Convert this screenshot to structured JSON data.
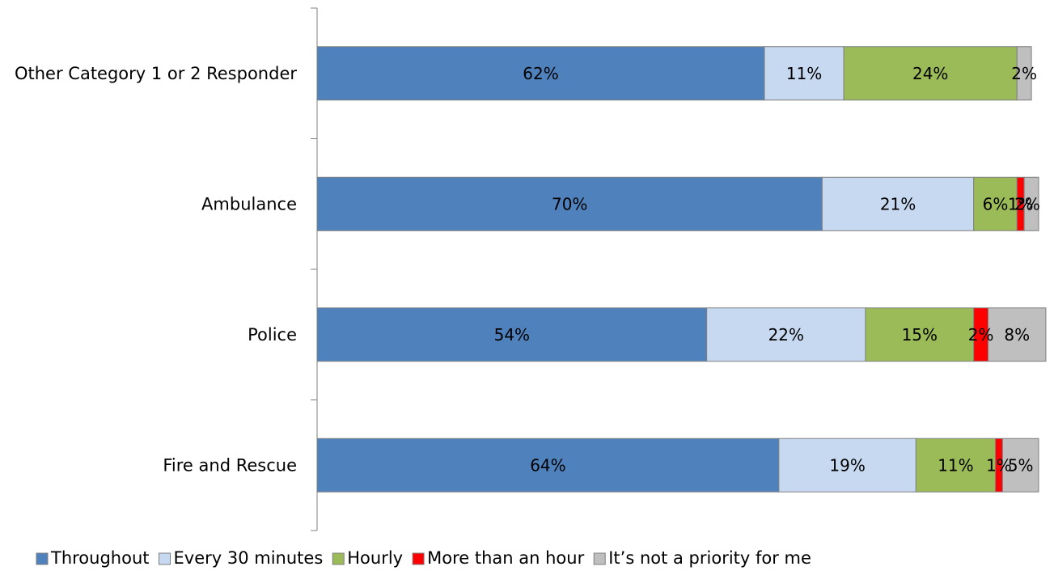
{
  "chart_data": {
    "type": "bar",
    "orientation": "horizontal",
    "stacked": true,
    "categories": [
      "Other Category 1 or 2 Responder",
      "Ambulance",
      "Police",
      "Fire and Rescue"
    ],
    "series": [
      {
        "name": "Throughout",
        "color": "#4F81BD",
        "values": [
          62,
          70,
          54,
          64
        ]
      },
      {
        "name": "Every 30 minutes",
        "color": "#C6D9F1",
        "values": [
          11,
          21,
          22,
          19
        ]
      },
      {
        "name": "Hourly",
        "color": "#9BBB59",
        "values": [
          24,
          6,
          15,
          11
        ]
      },
      {
        "name": "More than an hour",
        "color": "#FF0000",
        "values": [
          0,
          1,
          2,
          1
        ]
      },
      {
        "name": "It’s not a priority for me",
        "color": "#BFBFBF",
        "values": [
          2,
          2,
          8,
          5
        ]
      }
    ],
    "xlim": [
      0,
      100
    ],
    "grid": false,
    "legend_position": "bottom",
    "title": "",
    "xlabel": "",
    "ylabel": ""
  }
}
